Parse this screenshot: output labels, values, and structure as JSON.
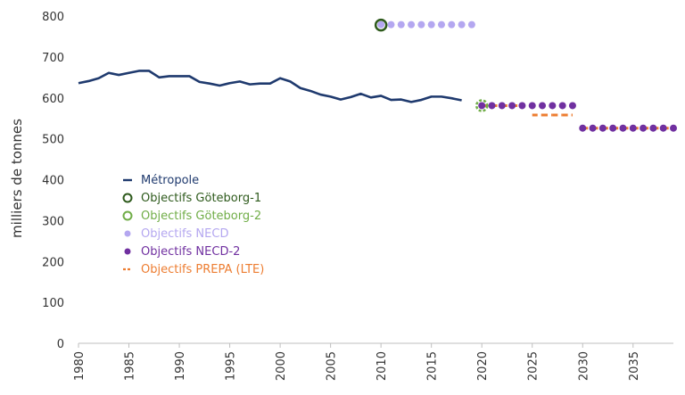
{
  "chart_data": {
    "type": "line",
    "title": "",
    "ylabel": "milliers de tonnes",
    "xlabel": "",
    "xlim": [
      1980,
      2039
    ],
    "ylim": [
      0,
      800
    ],
    "x_ticks": [
      "1980",
      "1985",
      "1990",
      "1995",
      "2000",
      "2005",
      "2010",
      "2015",
      "2020",
      "2025",
      "2030",
      "2035"
    ],
    "y_ticks": [
      "0",
      "100",
      "200",
      "300",
      "400",
      "500",
      "600",
      "700",
      "800"
    ],
    "grid": false,
    "legend_position": "center-left",
    "legend": [
      {
        "key": "metropole",
        "label": "Métropole",
        "marker": "—",
        "color": "#1f3a6e"
      },
      {
        "key": "goteborg1",
        "label": "Objectifs Göteborg-1",
        "marker": "○",
        "color": "#2e5a1c"
      },
      {
        "key": "goteborg2",
        "label": "Objectifs Göteborg-2",
        "marker": "○",
        "color": "#70ad47"
      },
      {
        "key": "necd",
        "label": "Objectifs NECD",
        "marker": "●",
        "color": "#b4a7f0"
      },
      {
        "key": "necd2",
        "label": "Objectifs NECD-2",
        "marker": "●",
        "color": "#7030a0"
      },
      {
        "key": "prepa",
        "label": "Objectifs PREPA (LTE)",
        "marker": "--",
        "color": "#ed7d31"
      }
    ],
    "series": [
      {
        "name": "Métropole",
        "key": "metropole",
        "style": "line",
        "color": "#1f3a6e",
        "x": [
          1980,
          1981,
          1982,
          1983,
          1984,
          1985,
          1986,
          1987,
          1988,
          1989,
          1990,
          1991,
          1992,
          1993,
          1994,
          1995,
          1996,
          1997,
          1998,
          1999,
          2000,
          2001,
          2002,
          2003,
          2004,
          2005,
          2006,
          2007,
          2008,
          2009,
          2010,
          2011,
          2012,
          2013,
          2014,
          2015,
          2016,
          2017,
          2018
        ],
        "values": [
          636,
          641,
          648,
          661,
          656,
          661,
          666,
          666,
          650,
          653,
          653,
          653,
          639,
          635,
          630,
          636,
          640,
          633,
          635,
          635,
          648,
          640,
          624,
          617,
          608,
          603,
          596,
          602,
          610,
          601,
          605,
          595,
          596,
          590,
          595,
          603,
          603,
          599,
          594
        ]
      },
      {
        "name": "Objectifs Göteborg-1",
        "key": "goteborg1",
        "style": "open-circle",
        "color": "#2e5a1c",
        "x": [
          2010
        ],
        "values": [
          778
        ]
      },
      {
        "name": "Objectifs Göteborg-2",
        "key": "goteborg2",
        "style": "open-circle-dashed",
        "color": "#70ad47",
        "x": [
          2020
        ],
        "values": [
          581
        ]
      },
      {
        "name": "Objectifs NECD",
        "key": "necd",
        "style": "dots",
        "color": "#b4a7f0",
        "x": [
          2010,
          2011,
          2012,
          2013,
          2014,
          2015,
          2016,
          2017,
          2018,
          2019
        ],
        "values": [
          779,
          779,
          779,
          779,
          779,
          779,
          779,
          779,
          779,
          779
        ]
      },
      {
        "name": "Objectifs NECD-2",
        "key": "necd2",
        "style": "dots",
        "color": "#7030a0",
        "x": [
          2020,
          2021,
          2022,
          2023,
          2024,
          2025,
          2026,
          2027,
          2028,
          2029,
          2030,
          2031,
          2032,
          2033,
          2034,
          2035,
          2036,
          2037,
          2038,
          2039
        ],
        "values": [
          581,
          581,
          581,
          581,
          581,
          581,
          581,
          581,
          581,
          581,
          526,
          526,
          526,
          526,
          526,
          526,
          526,
          526,
          526,
          526
        ]
      },
      {
        "name": "Objectifs PREPA (LTE)",
        "key": "prepa",
        "style": "dashed",
        "color": "#ed7d31",
        "x": [
          2020,
          2021,
          2022,
          2023,
          2024,
          2025,
          2026,
          2027,
          2028,
          2029,
          2030,
          2031,
          2032,
          2033,
          2034,
          2035,
          2036,
          2037,
          2038,
          2039
        ],
        "values": [
          581,
          581,
          581,
          581,
          581,
          558,
          558,
          558,
          558,
          558,
          526,
          526,
          526,
          526,
          526,
          526,
          526,
          526,
          526,
          526
        ]
      }
    ]
  }
}
